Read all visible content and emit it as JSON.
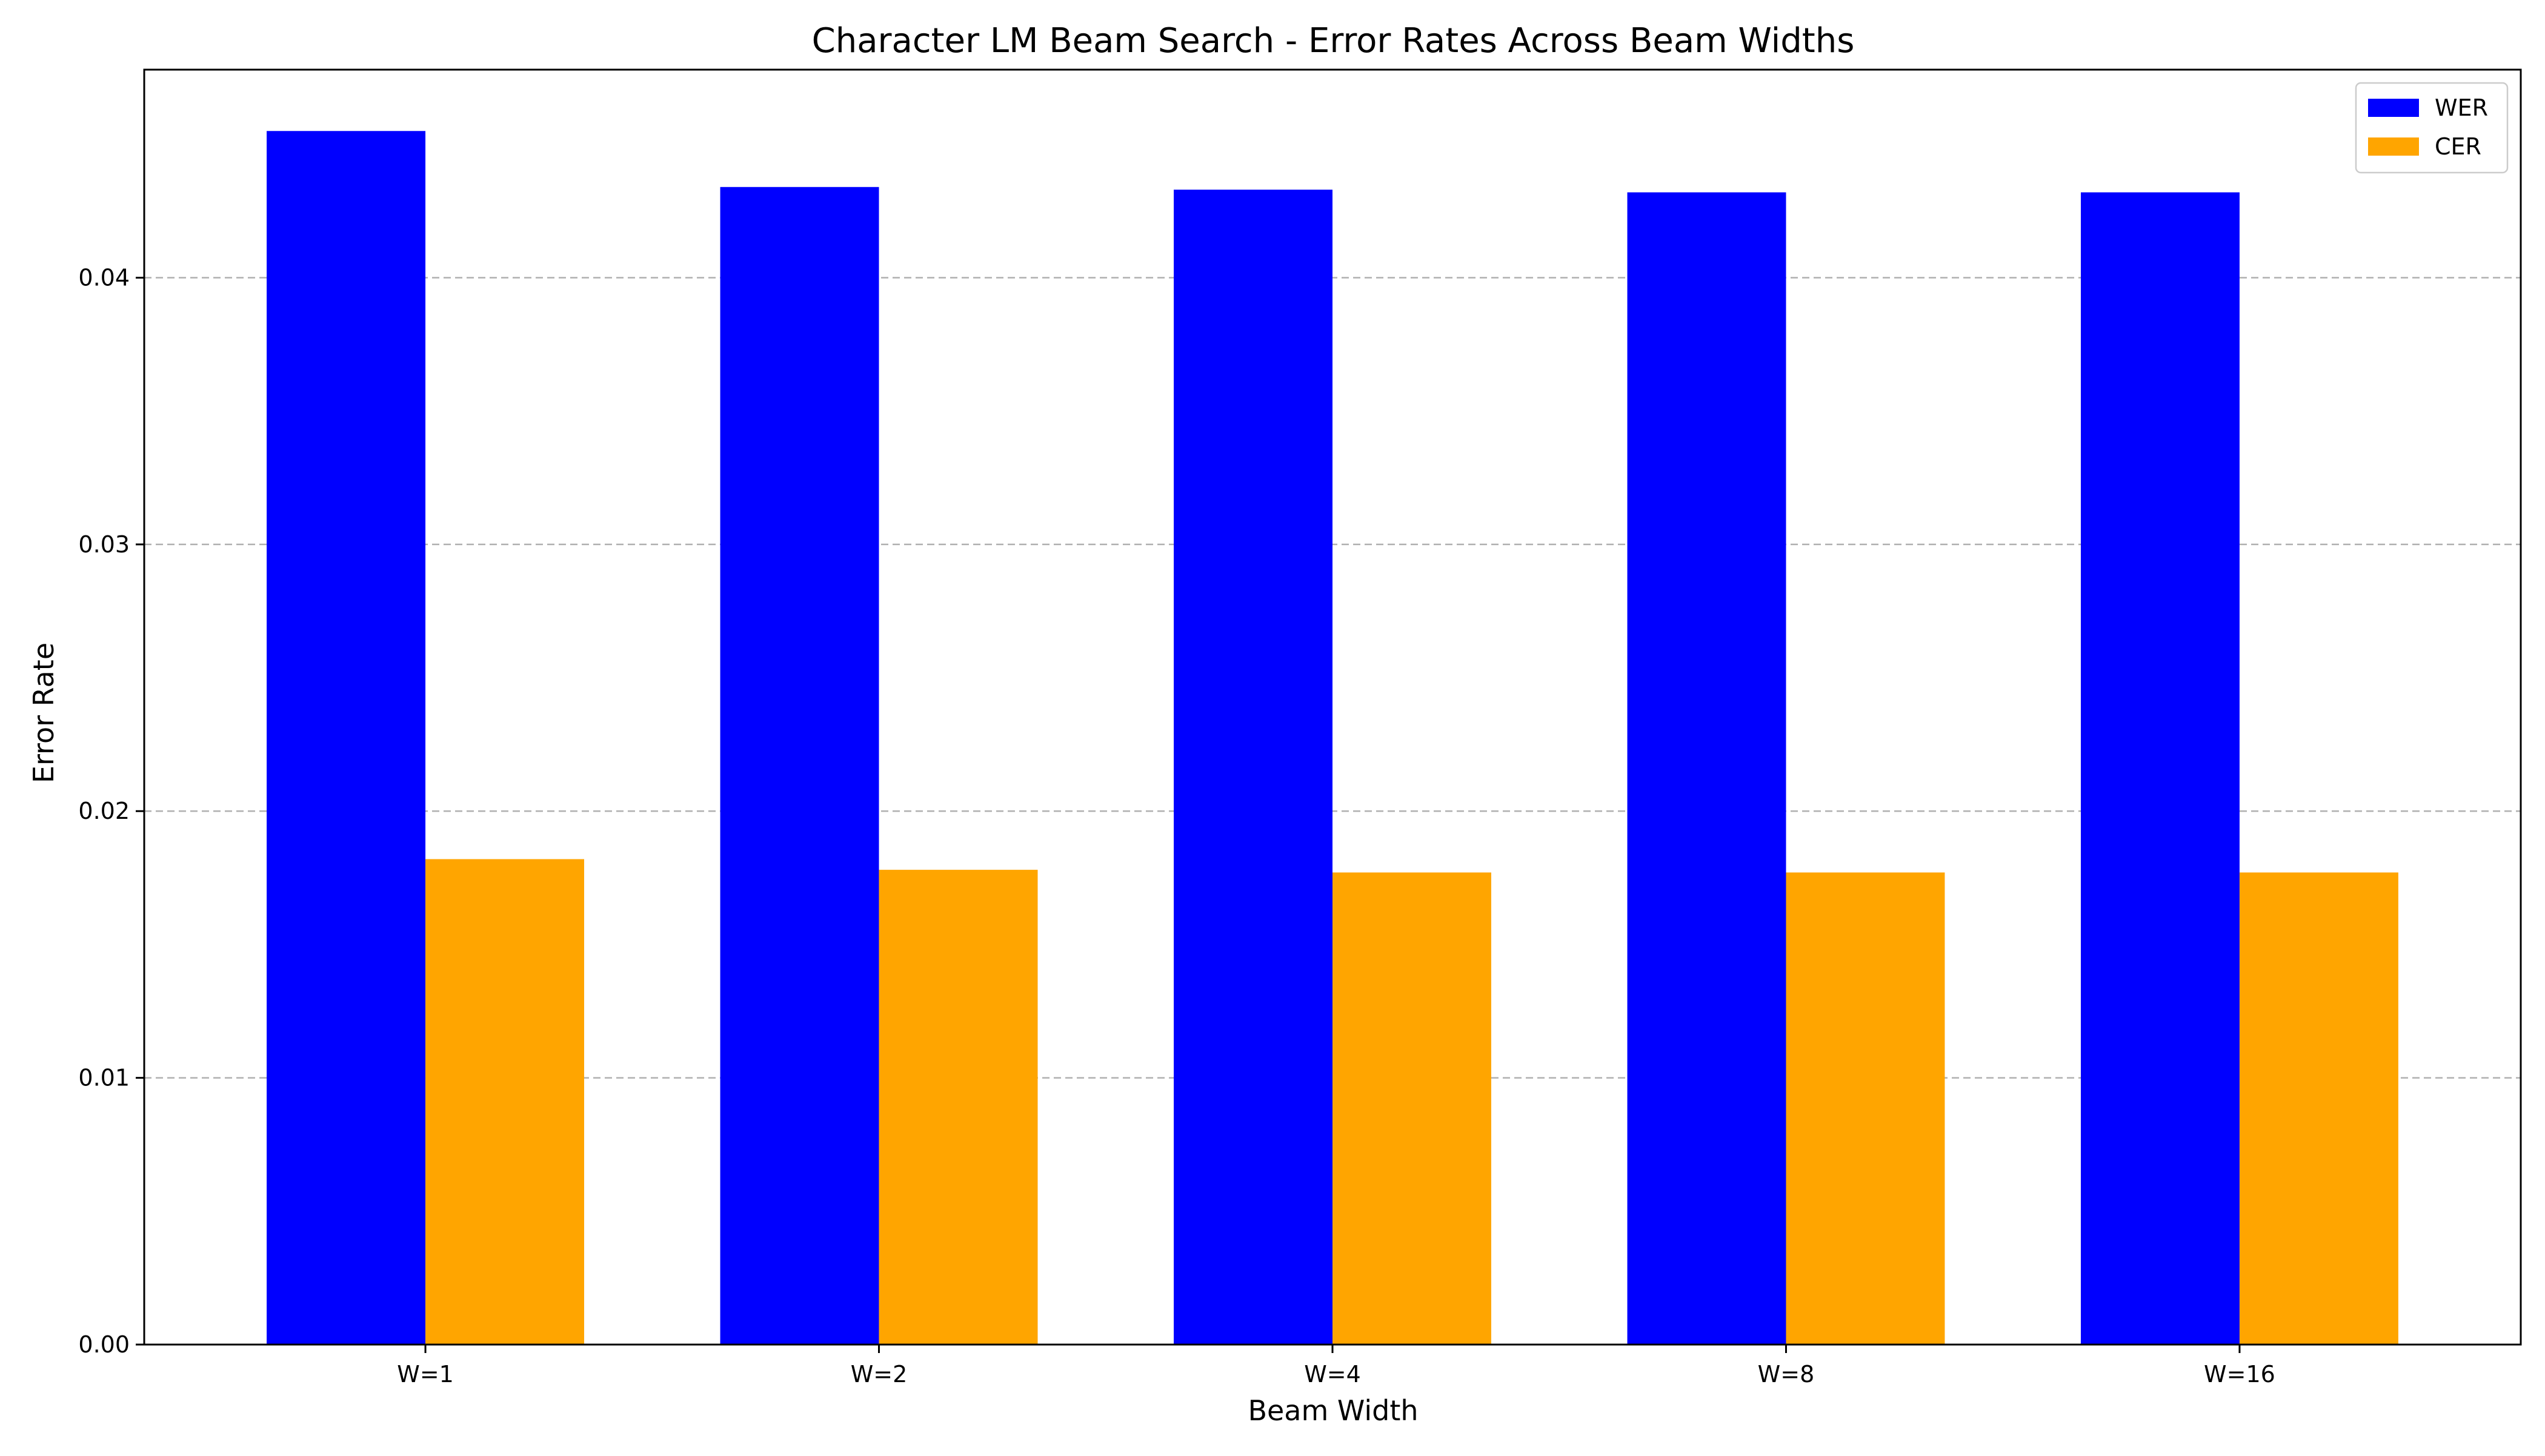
{
  "chart_data": {
    "type": "bar",
    "title": "Character LM Beam Search - Error Rates Across Beam Widths",
    "xlabel": "Beam Width",
    "ylabel": "Error Rate",
    "categories": [
      "W=1",
      "W=2",
      "W=4",
      "W=8",
      "W=16"
    ],
    "series": [
      {
        "name": "WER",
        "color": "#0000ff",
        "values": [
          0.0455,
          0.0434,
          0.0433,
          0.0432,
          0.0432
        ]
      },
      {
        "name": "CER",
        "color": "#ffa500",
        "values": [
          0.0182,
          0.0178,
          0.0177,
          0.0177,
          0.0177
        ]
      }
    ],
    "ylim": [
      0,
      0.0478
    ],
    "yticks": [
      0.0,
      0.01,
      0.02,
      0.03,
      0.04
    ],
    "ytick_labels": [
      "0.00",
      "0.01",
      "0.02",
      "0.03",
      "0.04"
    ],
    "grid": "y, dashed",
    "legend_position": "top-right"
  }
}
